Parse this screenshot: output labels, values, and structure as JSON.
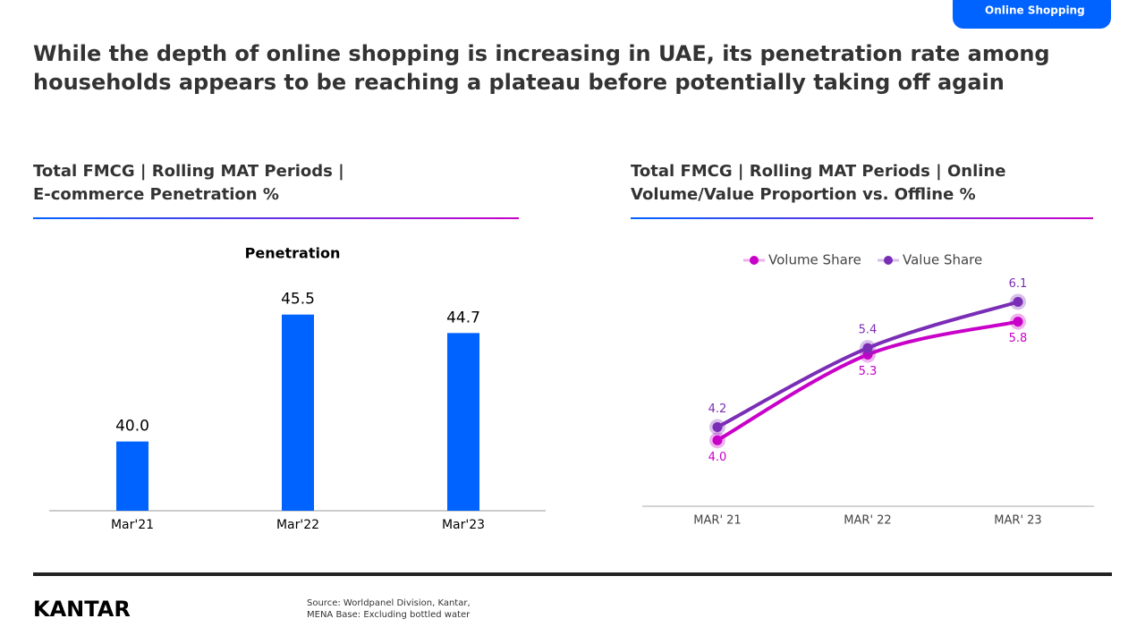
{
  "header": {
    "tab": "Online Shopping",
    "headline": [
      "While the depth of online shopping is increasing in UAE, its penetration rate among",
      "households appears to be reaching a plateau before potentially taking off again"
    ]
  },
  "chart_data": [
    {
      "type": "bar",
      "title": [
        "Total FMCG | Rolling MAT Periods |",
        "E-commerce Penetration %"
      ],
      "subtitle": "Penetration",
      "categories": [
        "Mar'21",
        "Mar'22",
        "Mar'23"
      ],
      "values": [
        40.0,
        45.5,
        44.7
      ],
      "value_labels": [
        "40.0",
        "45.5",
        "44.7"
      ],
      "color": "#0062ff",
      "ylim": [
        37,
        47
      ]
    },
    {
      "type": "line",
      "title": [
        "Total FMCG | Rolling MAT Periods | Online",
        "Volume/Value Proportion vs. Offline %"
      ],
      "categories": [
        "MAR' 21",
        "MAR' 22",
        "MAR' 23"
      ],
      "ylim": [
        3,
        6.5
      ],
      "series": [
        {
          "name": "Volume Share",
          "color": "#c800c8",
          "values": [
            4.0,
            5.3,
            5.8
          ],
          "value_labels": [
            "4.0",
            "5.3",
            "5.8"
          ]
        },
        {
          "name": "Value Share",
          "color": "#7a2db5",
          "values": [
            4.2,
            5.4,
            6.1
          ]
        }
      ],
      "legend": "top"
    }
  ],
  "footer": {
    "logo": "KANTAR",
    "source": [
      "Source: Worldpanel Division, Kantar,",
      "MENA Base: Excluding bottled water"
    ]
  }
}
